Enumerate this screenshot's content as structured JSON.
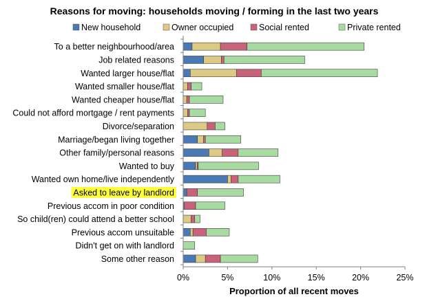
{
  "chart_data": {
    "type": "bar",
    "orientation": "horizontal",
    "stacked": true,
    "title": "Reasons for moving: households moving / forming in the last two years",
    "xlabel": "Proportion of all recent moves",
    "ylabel": "",
    "xlim": [
      0,
      25
    ],
    "xticks": [
      0,
      5,
      10,
      15,
      20,
      25
    ],
    "tick_suffix": "%",
    "grid": false,
    "legend_position": "top",
    "categories": [
      "To a better neighbourhood/area",
      "Job related reasons",
      "Wanted larger house/flat",
      "Wanted smaller house/flat",
      "Wanted cheaper house/flat",
      "Could not afford mortgage / rent payments",
      "Divorce/separation",
      "Marriage/began living together",
      "Other family/personal reasons",
      "Wanted to buy",
      "Wanted own home/live independently",
      "Asked to leave by landlord",
      "Previous accom in poor condition",
      "So child(ren) could attend a better school",
      "Previous accom unsuitable",
      "Didn't get on with landlord",
      "Some other reason"
    ],
    "highlighted_category": "Asked to leave by landlord",
    "highlight_color": "#ffff3c",
    "series": [
      {
        "name": "New household",
        "color": "#4a7ab5",
        "values": [
          1.0,
          2.3,
          0.8,
          0.0,
          0.0,
          0.0,
          0.0,
          1.6,
          2.9,
          1.4,
          5.0,
          0.4,
          0.1,
          0.0,
          0.8,
          0.0,
          1.4
        ]
      },
      {
        "name": "Owner occupied",
        "color": "#dcc983",
        "values": [
          3.2,
          2.0,
          5.2,
          0.5,
          0.4,
          0.5,
          2.7,
          0.7,
          1.5,
          0.2,
          0.4,
          0.0,
          0.0,
          0.9,
          0.3,
          0.0,
          1.1
        ]
      },
      {
        "name": "Social rented",
        "color": "#c9637a",
        "values": [
          3.0,
          0.3,
          2.8,
          0.4,
          0.3,
          0.2,
          0.9,
          0.2,
          1.8,
          0.1,
          0.8,
          1.2,
          1.3,
          0.4,
          1.5,
          0.0,
          1.7
        ]
      },
      {
        "name": "Private rented",
        "color": "#a8dba1",
        "values": [
          13.2,
          9.1,
          13.1,
          1.2,
          3.8,
          1.8,
          1.1,
          4.0,
          4.5,
          6.8,
          4.7,
          5.2,
          3.3,
          0.6,
          2.6,
          1.3,
          4.2
        ]
      }
    ]
  }
}
